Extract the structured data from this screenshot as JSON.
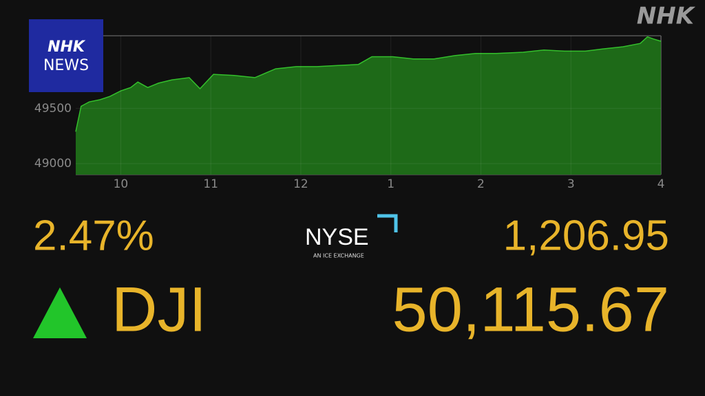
{
  "chart_data": {
    "type": "area",
    "x": [
      9.5,
      9.56,
      9.65,
      9.77,
      9.88,
      10.0,
      10.11,
      10.19,
      10.3,
      10.42,
      10.57,
      10.76,
      10.88,
      11.03,
      11.26,
      11.49,
      11.72,
      11.95,
      12.18,
      12.41,
      12.64,
      12.79,
      13.02,
      13.25,
      13.48,
      13.71,
      13.94,
      14.17,
      14.47,
      14.7,
      14.93,
      15.16,
      15.35,
      15.58,
      15.77,
      15.85,
      15.92,
      16.0
    ],
    "values": [
      49290,
      49520,
      49560,
      49580,
      49610,
      49660,
      49690,
      49740,
      49690,
      49730,
      49760,
      49780,
      49680,
      49810,
      49800,
      49780,
      49860,
      49880,
      49880,
      49890,
      49900,
      49970,
      49970,
      49950,
      49950,
      49980,
      50000,
      50000,
      50010,
      50030,
      50020,
      50020,
      50040,
      50060,
      50090,
      50150,
      50130,
      50110
    ],
    "color": "#1e6a18",
    "line_color": "#34c02c",
    "xlim": [
      9.5,
      16
    ],
    "xticks": [
      10,
      11,
      12,
      {
        "value": 13,
        "label": "1"
      },
      {
        "value": 14,
        "label": "2"
      },
      {
        "value": 15,
        "label": "3"
      },
      {
        "value": 16,
        "label": "4"
      }
    ],
    "ylim": [
      48900,
      50160
    ],
    "yticks": [
      49000,
      49500
    ],
    "grid": true
  },
  "logo": {
    "line1": "NHK",
    "line2": "NEWS"
  },
  "watermark": "NHK",
  "nyse": {
    "name": "NYSE",
    "tagline": "AN ICE EXCHANGE"
  },
  "quote": {
    "change_percent": "2.47%",
    "change": "1,206.95",
    "index": "DJI",
    "price": "50,115.67"
  }
}
